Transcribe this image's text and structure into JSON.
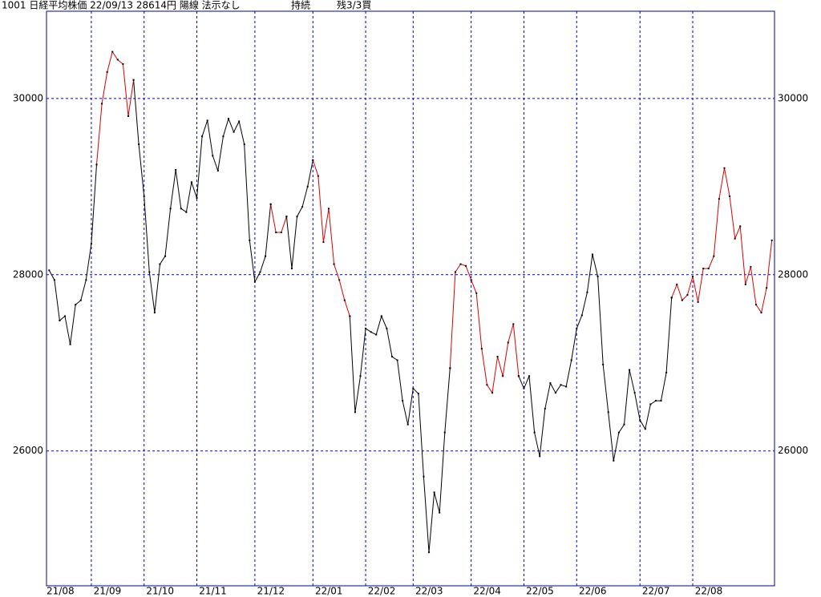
{
  "chart_data": {
    "type": "line",
    "title": "1001 日経平均株価 22/09/13 28614円 陽線 法示なし",
    "status": "持続",
    "position": "残3/3買",
    "categories": [
      "21/08",
      null,
      null,
      null,
      null,
      null,
      null,
      null,
      "21/09",
      null,
      null,
      null,
      null,
      null,
      null,
      null,
      null,
      null,
      "21/10",
      null,
      null,
      null,
      null,
      null,
      null,
      null,
      null,
      null,
      "21/11",
      null,
      null,
      null,
      null,
      null,
      null,
      null,
      null,
      null,
      null,
      "21/12",
      null,
      null,
      null,
      null,
      null,
      null,
      null,
      null,
      null,
      null,
      "22/01",
      null,
      null,
      null,
      null,
      null,
      null,
      null,
      null,
      null,
      "22/02",
      null,
      null,
      null,
      null,
      null,
      null,
      null,
      null,
      "22/03",
      null,
      null,
      null,
      null,
      null,
      null,
      null,
      null,
      null,
      null,
      "22/04",
      null,
      null,
      null,
      null,
      null,
      null,
      null,
      null,
      null,
      "22/05",
      null,
      null,
      null,
      null,
      null,
      null,
      null,
      null,
      null,
      "22/06",
      null,
      null,
      null,
      null,
      null,
      null,
      null,
      null,
      null,
      null,
      null,
      "22/07",
      null,
      null,
      null,
      null,
      null,
      null,
      null,
      null,
      null,
      "22/08",
      null,
      null,
      null,
      null,
      null,
      null,
      null,
      null,
      null,
      null,
      null,
      null,
      null,
      null,
      null
    ],
    "series": [
      {
        "color": "#000000",
        "values": [
          28050,
          27940,
          27480,
          27530,
          27210,
          27660,
          27710,
          27940,
          28350,
          29250,
          null,
          null,
          null,
          null,
          null,
          null,
          30210,
          29480,
          28890,
          28030,
          27570,
          28120,
          28210,
          28750,
          29190,
          28750,
          28710,
          29050,
          28870,
          29570,
          29750,
          29350,
          29180,
          29570,
          29770,
          29620,
          29740,
          29480,
          28390,
          27920,
          28030,
          28210,
          28800,
          null,
          null,
          28660,
          28070,
          28660,
          28770,
          29000,
          29300,
          null,
          null,
          null,
          null,
          null,
          null,
          27530,
          26440,
          26850,
          27390,
          27350,
          27320,
          27530,
          27390,
          27070,
          27030,
          26570,
          26300,
          26710,
          26650,
          25710,
          24850,
          25530,
          25300,
          26210,
          26940,
          null,
          null,
          null,
          null,
          null,
          null,
          null,
          null,
          null,
          null,
          null,
          null,
          26850,
          26710,
          26850,
          26210,
          25940,
          26480,
          26770,
          26660,
          26750,
          26730,
          27030,
          27390,
          27540,
          27800,
          28230,
          27980,
          26980,
          26440,
          25890,
          26210,
          26300,
          26920,
          26660,
          26350,
          26250,
          26530,
          26570,
          26570,
          26890,
          27740,
          null,
          null,
          null,
          null,
          null,
          null,
          null,
          null,
          null,
          null,
          null,
          null,
          null,
          null,
          null,
          null,
          null,
          null,
          null
        ]
      },
      {
        "color": "#e00000",
        "values": [
          null,
          null,
          null,
          null,
          null,
          null,
          null,
          null,
          null,
          29250,
          29940,
          30300,
          30530,
          30440,
          30390,
          29800,
          30210,
          null,
          null,
          null,
          null,
          null,
          null,
          null,
          null,
          null,
          null,
          null,
          null,
          null,
          null,
          null,
          null,
          null,
          null,
          null,
          null,
          null,
          null,
          null,
          null,
          null,
          28800,
          28480,
          28480,
          28660,
          null,
          null,
          null,
          null,
          29300,
          29120,
          28370,
          28750,
          28120,
          27940,
          27710,
          27530,
          null,
          null,
          null,
          null,
          null,
          null,
          null,
          null,
          null,
          null,
          null,
          null,
          null,
          null,
          null,
          null,
          null,
          null,
          26940,
          28030,
          28120,
          28100,
          27940,
          27790,
          27160,
          26750,
          26660,
          27070,
          26850,
          27230,
          27440,
          26850,
          null,
          null,
          null,
          null,
          null,
          null,
          null,
          null,
          null,
          null,
          null,
          null,
          null,
          null,
          null,
          null,
          null,
          null,
          null,
          null,
          null,
          null,
          null,
          null,
          null,
          null,
          null,
          null,
          27740,
          27890,
          27710,
          27770,
          27980,
          27690,
          28070,
          28070,
          28210,
          28860,
          29210,
          28890,
          28410,
          28550,
          27890,
          28090,
          27660,
          27570,
          27850,
          28390
        ]
      }
    ],
    "ylim": [
      24470,
      30990
    ],
    "yticks": [
      26000,
      28000,
      30000
    ],
    "grid": true,
    "grid_color": "#0000c0",
    "frame_color": "#0000a0",
    "point_color": "#000000"
  }
}
